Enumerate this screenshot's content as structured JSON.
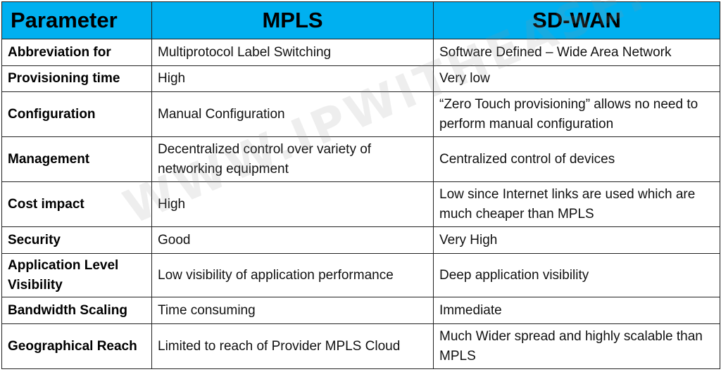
{
  "watermark": "WWW.IPWITHEASE.COM",
  "header": {
    "col1": "Parameter",
    "col2": "MPLS",
    "col3": "SD-WAN"
  },
  "rows": [
    {
      "param": "Abbreviation for",
      "mpls": "Multiprotocol Label Switching",
      "sdwan": "Software Defined – Wide Area Network"
    },
    {
      "param": "Provisioning time",
      "mpls": "High",
      "sdwan": "Very low"
    },
    {
      "param": "Configuration",
      "mpls": "Manual Configuration",
      "sdwan": "“Zero Touch provisioning” allows no need to perform manual configuration"
    },
    {
      "param": "Management",
      "mpls": "Decentralized control over variety of networking equipment",
      "sdwan": "Centralized control of devices"
    },
    {
      "param": "Cost impact",
      "mpls": "High",
      "sdwan": "Low since Internet links are used which are much cheaper than MPLS"
    },
    {
      "param": "Security",
      "mpls": "Good",
      "sdwan": "Very High"
    },
    {
      "param": "Application Level Visibility",
      "mpls": "Low visibility of application performance",
      "sdwan": "Deep application visibility"
    },
    {
      "param": "Bandwidth Scaling",
      "mpls": "Time consuming",
      "sdwan": "Immediate"
    },
    {
      "param": "Geographical Reach",
      "mpls": "Limited to reach of Provider MPLS Cloud",
      "sdwan": "Much Wider spread and highly scalable than MPLS"
    }
  ],
  "colors": {
    "header_bg": "#00b0f0",
    "border": "#222222"
  }
}
